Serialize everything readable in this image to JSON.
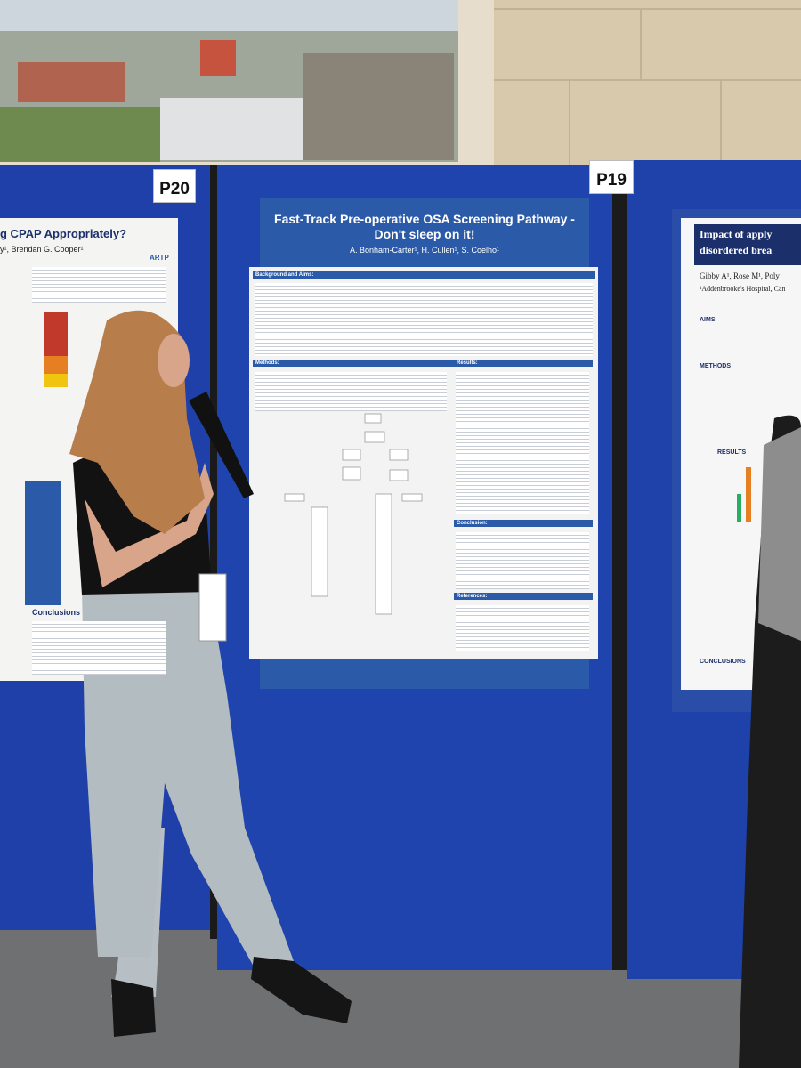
{
  "labels": {
    "left_board": "P20",
    "center_board": "P19"
  },
  "main_poster": {
    "title": "Fast-Track Pre-operative OSA Screening Pathway - Don't sleep on it!",
    "authors": "A. Bonham-Carter¹, H. Cullen¹, S. Coelho¹",
    "sections": [
      "Background and Aims:",
      "Methods:",
      "Results:",
      "Conclusion:",
      "References:"
    ]
  },
  "left_poster": {
    "title": "g CPAP Appropriately?",
    "authors": "y¹, Brendan G. Cooper¹",
    "logo": "ARTP",
    "sections": [
      "Conclusions"
    ]
  },
  "right_poster": {
    "title": "Impact of apply",
    "title_line2": "disordered brea",
    "authors": "Gibby A¹, Rose M¹, Poly",
    "affiliation": "¹Addenbrooke's Hospital, Can",
    "sections": [
      "AIMS",
      "METHODS",
      "RESULTS",
      "CONCLUSIONS"
    ]
  }
}
